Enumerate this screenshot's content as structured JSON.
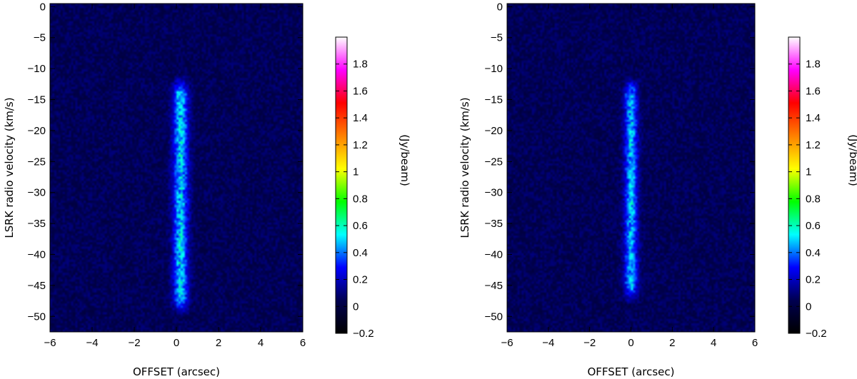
{
  "chart_data": [
    {
      "type": "heatmap",
      "title": "",
      "xlabel": "OFFSET (arcsec)",
      "ylabel": "LSRK radio velocity   (km/s)",
      "xlim": [
        -6,
        6
      ],
      "ylim": [
        -52.5,
        0.5
      ],
      "xticks": [
        -6,
        -4,
        -2,
        0,
        2,
        4,
        6
      ],
      "yticks": [
        0,
        -5,
        -10,
        -15,
        -20,
        -25,
        -30,
        -35,
        -40,
        -45,
        -50
      ],
      "colorbar": {
        "label": "(Jy/beam)",
        "range": [
          -0.2,
          2.0
        ],
        "ticks": [
          -0.2,
          0,
          0.2,
          0.4,
          0.6,
          0.8,
          1,
          1.2,
          1.4,
          1.6,
          1.8
        ],
        "colormap": [
          "#000000",
          "#000050",
          "#0000ff",
          "#00ffff",
          "#00ff00",
          "#ffff00",
          "#ff8000",
          "#ff0000",
          "#ff00ff",
          "#ffffff"
        ]
      },
      "background_level": 0.05,
      "emission": {
        "center_offset": 0.2,
        "velocity_range": [
          -48,
          -13
        ],
        "peak": 0.45,
        "width": 0.35
      }
    },
    {
      "type": "heatmap",
      "title": "",
      "xlabel": "OFFSET (arcsec)",
      "ylabel": "LSRK radio velocity   (km/s)",
      "xlim": [
        -6,
        6
      ],
      "ylim": [
        -52.5,
        0.5
      ],
      "xticks": [
        -6,
        -4,
        -2,
        0,
        2,
        4,
        6
      ],
      "yticks": [
        0,
        -5,
        -10,
        -15,
        -20,
        -25,
        -30,
        -35,
        -40,
        -45,
        -50
      ],
      "colorbar": {
        "label": "(Jy/beam)",
        "range": [
          -0.2,
          2.0
        ],
        "ticks": [
          -0.2,
          0,
          0.2,
          0.4,
          0.6,
          0.8,
          1,
          1.2,
          1.4,
          1.6,
          1.8
        ],
        "colormap": [
          "#000000",
          "#000050",
          "#0000ff",
          "#00ffff",
          "#00ff00",
          "#ffff00",
          "#ff8000",
          "#ff0000",
          "#ff00ff",
          "#ffffff"
        ]
      },
      "background_level": 0.05,
      "emission": {
        "center_offset": 0.0,
        "velocity_range": [
          -46,
          -13
        ],
        "peak": 0.42,
        "width": 0.32
      }
    }
  ]
}
